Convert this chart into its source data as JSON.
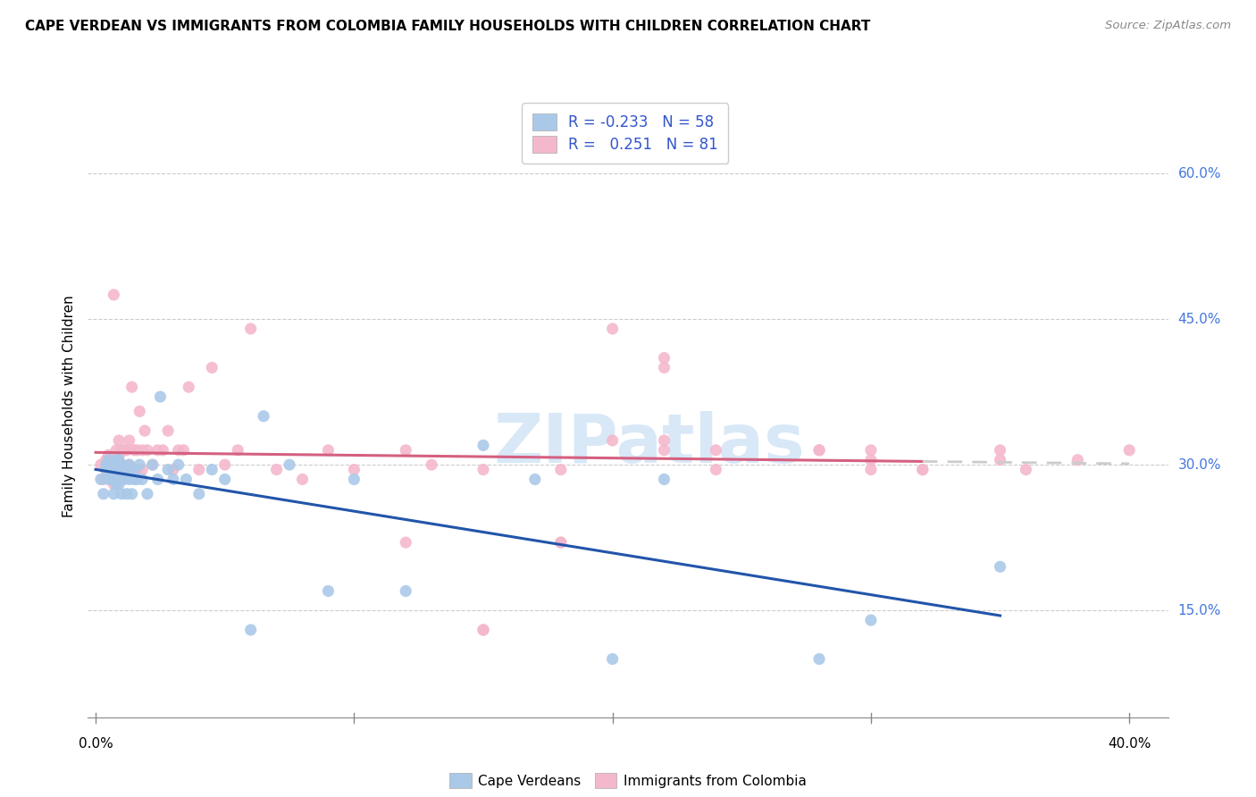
{
  "title": "CAPE VERDEAN VS IMMIGRANTS FROM COLOMBIA FAMILY HOUSEHOLDS WITH CHILDREN CORRELATION CHART",
  "source": "Source: ZipAtlas.com",
  "ylabel": "Family Households with Children",
  "xlim": [
    -0.003,
    0.415
  ],
  "ylim": [
    0.04,
    0.68
  ],
  "xticks": [
    0.0,
    0.1,
    0.2,
    0.3,
    0.4
  ],
  "xtick_labels": [
    "0.0%",
    "",
    "",
    "",
    "40.0%"
  ],
  "yticks": [
    0.15,
    0.3,
    0.45,
    0.6
  ],
  "ytick_labels": [
    "15.0%",
    "30.0%",
    "45.0%",
    "60.0%"
  ],
  "blue_R": -0.233,
  "blue_N": 58,
  "pink_R": 0.251,
  "pink_N": 81,
  "blue_scatter_color": "#aac9e8",
  "pink_scatter_color": "#f4b8cc",
  "blue_line_color": "#2255aa",
  "pink_line_color": "#d46080",
  "pink_dash_color": "#cccccc",
  "watermark": "ZIPatlas",
  "legend_label_blue": "Cape Verdeans",
  "legend_label_pink": "Immigrants from Colombia",
  "blue_x": [
    0.002,
    0.003,
    0.004,
    0.004,
    0.005,
    0.005,
    0.005,
    0.006,
    0.006,
    0.007,
    0.007,
    0.007,
    0.008,
    0.008,
    0.008,
    0.008,
    0.009,
    0.009,
    0.009,
    0.01,
    0.01,
    0.01,
    0.011,
    0.011,
    0.012,
    0.012,
    0.013,
    0.013,
    0.014,
    0.015,
    0.015,
    0.016,
    0.017,
    0.018,
    0.02,
    0.022,
    0.024,
    0.025,
    0.028,
    0.03,
    0.032,
    0.035,
    0.04,
    0.045,
    0.05,
    0.06,
    0.065,
    0.075,
    0.09,
    0.1,
    0.12,
    0.15,
    0.17,
    0.2,
    0.22,
    0.28,
    0.3,
    0.35
  ],
  "blue_y": [
    0.285,
    0.27,
    0.295,
    0.3,
    0.285,
    0.295,
    0.305,
    0.285,
    0.3,
    0.27,
    0.285,
    0.3,
    0.28,
    0.285,
    0.295,
    0.305,
    0.28,
    0.295,
    0.305,
    0.27,
    0.285,
    0.3,
    0.285,
    0.295,
    0.27,
    0.295,
    0.285,
    0.3,
    0.27,
    0.285,
    0.295,
    0.285,
    0.3,
    0.285,
    0.27,
    0.3,
    0.285,
    0.37,
    0.295,
    0.285,
    0.3,
    0.285,
    0.27,
    0.295,
    0.285,
    0.13,
    0.35,
    0.3,
    0.17,
    0.285,
    0.17,
    0.32,
    0.285,
    0.1,
    0.285,
    0.1,
    0.14,
    0.195
  ],
  "pink_x": [
    0.002,
    0.003,
    0.004,
    0.004,
    0.005,
    0.005,
    0.006,
    0.006,
    0.007,
    0.007,
    0.007,
    0.008,
    0.008,
    0.008,
    0.009,
    0.009,
    0.009,
    0.01,
    0.01,
    0.011,
    0.011,
    0.012,
    0.012,
    0.013,
    0.013,
    0.014,
    0.015,
    0.015,
    0.016,
    0.016,
    0.017,
    0.018,
    0.018,
    0.019,
    0.02,
    0.022,
    0.024,
    0.026,
    0.028,
    0.03,
    0.032,
    0.034,
    0.036,
    0.04,
    0.045,
    0.05,
    0.055,
    0.06,
    0.07,
    0.08,
    0.09,
    0.1,
    0.12,
    0.13,
    0.15,
    0.18,
    0.2,
    0.22,
    0.24,
    0.28,
    0.3,
    0.3,
    0.32,
    0.35,
    0.35,
    0.36,
    0.38,
    0.4,
    0.22,
    0.24,
    0.18,
    0.15,
    0.12,
    0.2,
    0.22,
    0.28,
    0.15,
    0.18,
    0.22,
    0.3,
    0.32
  ],
  "pink_y": [
    0.3,
    0.285,
    0.295,
    0.305,
    0.295,
    0.31,
    0.295,
    0.305,
    0.28,
    0.295,
    0.475,
    0.295,
    0.305,
    0.315,
    0.295,
    0.31,
    0.325,
    0.3,
    0.315,
    0.295,
    0.315,
    0.295,
    0.315,
    0.3,
    0.325,
    0.38,
    0.295,
    0.315,
    0.295,
    0.315,
    0.355,
    0.295,
    0.315,
    0.335,
    0.315,
    0.3,
    0.315,
    0.315,
    0.335,
    0.295,
    0.315,
    0.315,
    0.38,
    0.295,
    0.4,
    0.3,
    0.315,
    0.44,
    0.295,
    0.285,
    0.315,
    0.295,
    0.22,
    0.3,
    0.13,
    0.295,
    0.44,
    0.41,
    0.295,
    0.315,
    0.295,
    0.305,
    0.295,
    0.315,
    0.305,
    0.295,
    0.305,
    0.315,
    0.4,
    0.315,
    0.22,
    0.295,
    0.315,
    0.325,
    0.325,
    0.315,
    0.13,
    0.22,
    0.315,
    0.315,
    0.295
  ]
}
